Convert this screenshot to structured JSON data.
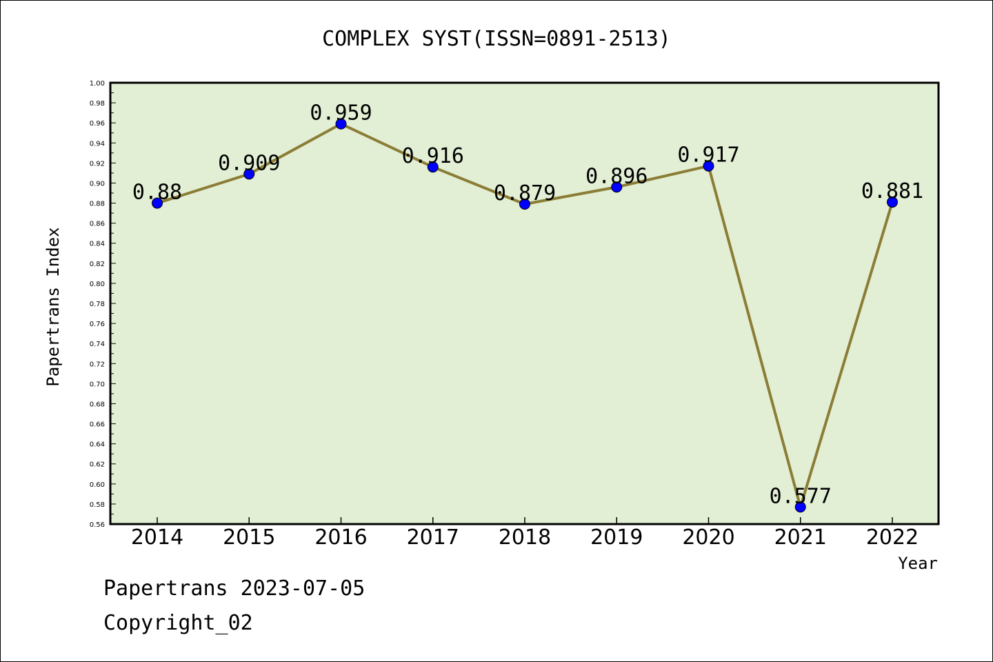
{
  "chart_data": {
    "type": "line",
    "title": "COMPLEX SYST(ISSN=0891-2513)",
    "xlabel": "Year",
    "ylabel": "Papertrans Index",
    "categories": [
      "2014",
      "2015",
      "2016",
      "2017",
      "2018",
      "2019",
      "2020",
      "2021",
      "2022"
    ],
    "values": [
      0.88,
      0.909,
      0.959,
      0.916,
      0.879,
      0.896,
      0.917,
      0.577,
      0.881
    ],
    "labels": [
      "0.88",
      "0.909",
      "0.959",
      "0.916",
      "0.879",
      "0.896",
      "0.917",
      "0.577",
      "0.881"
    ],
    "ylim": [
      0.56,
      1.0
    ],
    "ytick_step": 0.02,
    "grid": false,
    "colors": {
      "plot_bg": "#e2efd5",
      "line": "#8b7d35",
      "marker": "#0000ff"
    }
  },
  "footer": {
    "line1": "Papertrans 2023-07-05",
    "line2": "Copyright_02"
  }
}
